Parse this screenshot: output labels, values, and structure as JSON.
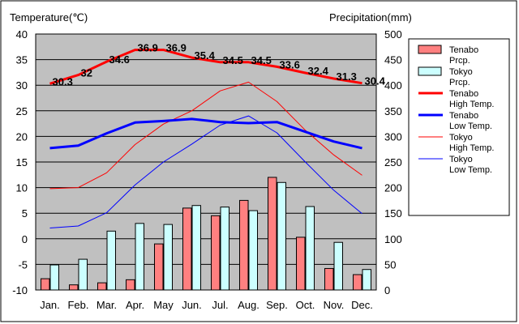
{
  "chart_data": {
    "type": "bar+line",
    "left_axis_title": "Temperature(℃)",
    "right_axis_title": "Precipitation(mm)",
    "categories": [
      "Jan.",
      "Feb.",
      "Mar.",
      "Apr.",
      "May",
      "Jun.",
      "Jul.",
      "Aug.",
      "Sep.",
      "Oct.",
      "Nov.",
      "Dec."
    ],
    "ylim_temperature": [
      -10,
      40
    ],
    "y_ticks_temperature": [
      "40",
      "35",
      "30",
      "25",
      "20",
      "15",
      "10",
      "5",
      "0",
      "-5",
      "-10"
    ],
    "ylim_precipitation": [
      0,
      500
    ],
    "y_ticks_precipitation": [
      "500",
      "450",
      "400",
      "350",
      "300",
      "250",
      "200",
      "150",
      "100",
      "50",
      "0"
    ],
    "grid": true,
    "plot_background": "#c0c0c0",
    "legend_position": "right",
    "bar_series": [
      {
        "name": "Tenabo Prcp.",
        "legend_lines": [
          "Tenabo",
          "Prcp."
        ],
        "color": "#ff8080",
        "values": [
          22,
          10,
          14,
          20,
          90,
          160,
          145,
          175,
          220,
          103,
          42,
          30
        ]
      },
      {
        "name": "Tokyo Prcp.",
        "legend_lines": [
          "Tokyo",
          "Prcp."
        ],
        "color": "#ccffff",
        "values": [
          49,
          60,
          115,
          130,
          128,
          165,
          162,
          155,
          210,
          163,
          93,
          40
        ]
      }
    ],
    "line_series": [
      {
        "name": "Tenabo High Temp.",
        "legend_lines": [
          "Tenabo",
          "High Temp."
        ],
        "color": "#ff0000",
        "width": 3,
        "values": [
          30.3,
          32,
          34.6,
          36.9,
          36.9,
          35.4,
          34.5,
          34.5,
          33.6,
          32.4,
          31.3,
          30.4
        ],
        "data_labels": [
          "30.3",
          "32",
          "34.6",
          "36.9",
          "36.9",
          "35.4",
          "34.5",
          "34.5",
          "33.6",
          "32.4",
          "31.3",
          "30.4"
        ]
      },
      {
        "name": "Tenabo Low Temp.",
        "legend_lines": [
          "Tenabo",
          "Low Temp."
        ],
        "color": "#0000ff",
        "width": 3,
        "values": [
          17.7,
          18.2,
          20.6,
          22.7,
          23,
          23.4,
          22.8,
          22.6,
          22.8,
          20.9,
          19,
          17.7
        ]
      },
      {
        "name": "Tokyo High Temp.",
        "legend_lines": [
          "Tokyo",
          "High Temp."
        ],
        "color": "#ff0000",
        "width": 1,
        "values": [
          9.8,
          10,
          12.9,
          18.4,
          22.4,
          25,
          28.9,
          30.6,
          26.8,
          21.2,
          16.4,
          12.4
        ]
      },
      {
        "name": "Tokyo Low Temp.",
        "legend_lines": [
          "Tokyo",
          "Low Temp."
        ],
        "color": "#0000ff",
        "width": 1,
        "values": [
          2.1,
          2.5,
          5.1,
          10.5,
          15,
          18.5,
          22.2,
          24,
          20.7,
          15,
          9.5,
          4.9
        ]
      }
    ]
  }
}
